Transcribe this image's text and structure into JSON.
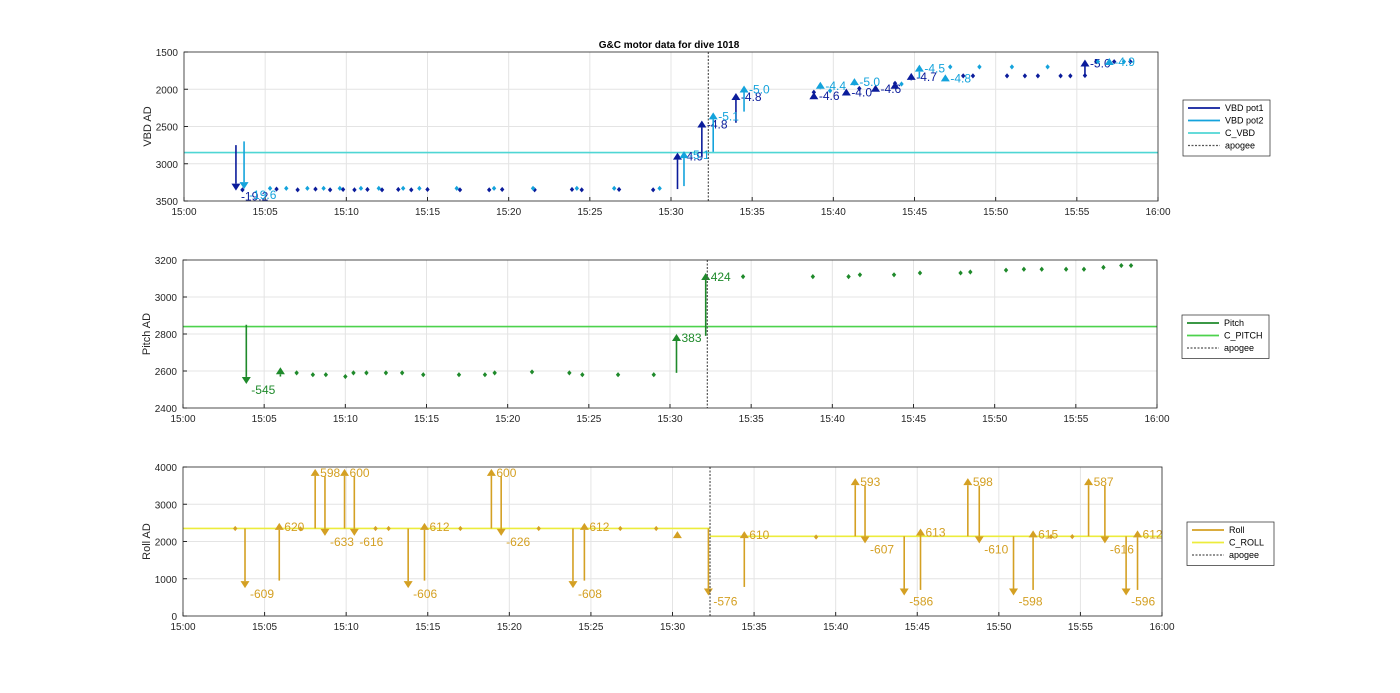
{
  "figure_title": "G&C motor data for dive 1018",
  "colors": {
    "pot1": "#0b1c9b",
    "pot2": "#14a3dc",
    "c_vbd": "#4fd6d4",
    "pitch": "#1f8a2b",
    "c_pitch": "#4cd24c",
    "roll": "#d4a023",
    "c_roll": "#ecec3c",
    "apogee": "#555555",
    "grid": "#e4e4e4"
  },
  "chart_data": [
    {
      "type": "scatter",
      "ylabel": "VBD AD",
      "xlim": [
        "15:00",
        "16:00"
      ],
      "x_ticks": [
        "15:00",
        "15:05",
        "15:10",
        "15:15",
        "15:20",
        "15:25",
        "15:30",
        "15:35",
        "15:40",
        "15:45",
        "15:50",
        "15:55",
        "16:00"
      ],
      "ylim": [
        1500,
        3500
      ],
      "y_reversed": true,
      "y_ticks": [
        1500,
        2000,
        2500,
        3000,
        3500
      ],
      "grid": true,
      "legend_position": "right",
      "legend": [
        "VBD pot1",
        "VBD pot2",
        "C_VBD",
        "apogee"
      ],
      "apogee_time": "15:32.3",
      "hlines": [
        {
          "series": "C_VBD",
          "value": 2850
        }
      ],
      "series": [
        {
          "name": "VBD pot1",
          "points": [
            [
              "15:03.6",
              3350
            ],
            [
              "15:05.7",
              3340
            ],
            [
              "15:07.0",
              3350
            ],
            [
              "15:08.1",
              3340
            ],
            [
              "15:09.0",
              3350
            ],
            [
              "15:09.8",
              3345
            ],
            [
              "15:10.5",
              3350
            ],
            [
              "15:11.3",
              3345
            ],
            [
              "15:12.2",
              3350
            ],
            [
              "15:13.2",
              3345
            ],
            [
              "15:14.0",
              3350
            ],
            [
              "15:15.0",
              3345
            ],
            [
              "15:17.0",
              3350
            ],
            [
              "15:18.8",
              3350
            ],
            [
              "15:19.6",
              3345
            ],
            [
              "15:21.6",
              3350
            ],
            [
              "15:23.9",
              3345
            ],
            [
              "15:24.5",
              3350
            ],
            [
              "15:26.8",
              3345
            ],
            [
              "15:28.9",
              3350
            ],
            [
              "15:38.8",
              2040
            ],
            [
              "15:41.6",
              1990
            ],
            [
              "15:43.8",
              1920
            ],
            [
              "15:48.0",
              1820
            ],
            [
              "15:48.6",
              1820
            ],
            [
              "15:50.7",
              1820
            ],
            [
              "15:51.8",
              1820
            ],
            [
              "15:52.6",
              1820
            ],
            [
              "15:54.0",
              1820
            ],
            [
              "15:54.6",
              1820
            ],
            [
              "15:55.5",
              1815
            ],
            [
              "15:56.2",
              1630
            ],
            [
              "15:57.3",
              1630
            ],
            [
              "15:58.3",
              1630
            ]
          ],
          "arrows": [
            {
              "t": "15:03.2",
              "from": 2750,
              "to": 3360,
              "label": "-19.2"
            },
            {
              "t": "15:30.4",
              "from": 3340,
              "to": 2850,
              "label": "-4.9"
            },
            {
              "t": "15:31.9",
              "from": 2900,
              "to": 2420,
              "label": "-4.8"
            },
            {
              "t": "15:34.0",
              "from": 2450,
              "to": 2050,
              "label": "-4.8"
            },
            {
              "t": "15:38.8",
              "from": 2080,
              "to": 2040,
              "label": "-4.6"
            },
            {
              "t": "15:40.8",
              "from": 2030,
              "to": 1990,
              "label": "-4.0"
            },
            {
              "t": "15:42.6",
              "from": 1990,
              "to": 1940,
              "label": "-4.6"
            },
            {
              "t": "15:43.8",
              "from": 1950,
              "to": 1900,
              "label": ""
            },
            {
              "t": "15:44.8",
              "from": 1880,
              "to": 1780,
              "label": "-4.7"
            },
            {
              "t": "15:55.5",
              "from": 1820,
              "to": 1600,
              "label": "-5.0"
            }
          ]
        },
        {
          "name": "VBD pot2",
          "points": [
            [
              "15:05.3",
              3330
            ],
            [
              "15:06.3",
              3330
            ],
            [
              "15:07.6",
              3330
            ],
            [
              "15:08.6",
              3330
            ],
            [
              "15:09.6",
              3330
            ],
            [
              "15:10.9",
              3330
            ],
            [
              "15:12.0",
              3330
            ],
            [
              "15:13.5",
              3330
            ],
            [
              "15:14.5",
              3330
            ],
            [
              "15:16.8",
              3330
            ],
            [
              "15:19.1",
              3330
            ],
            [
              "15:21.5",
              3330
            ],
            [
              "15:24.2",
              3330
            ],
            [
              "15:26.5",
              3330
            ],
            [
              "15:29.3",
              3330
            ],
            [
              "15:39.8",
              2020
            ],
            [
              "15:44.2",
              1930
            ],
            [
              "15:47.2",
              1700
            ],
            [
              "15:49.0",
              1700
            ],
            [
              "15:51.0",
              1700
            ],
            [
              "15:53.2",
              1700
            ],
            [
              "15:56.3",
              1630
            ],
            [
              "15:57.9",
              1630
            ]
          ],
          "arrows": [
            {
              "t": "15:03.7",
              "from": 2700,
              "to": 3340,
              "label": "-19.6"
            },
            {
              "t": "15:30.8",
              "from": 3300,
              "to": 2830,
              "label": "-5.1"
            },
            {
              "t": "15:32.6",
              "from": 2840,
              "to": 2310,
              "label": "-5.1"
            },
            {
              "t": "15:34.5",
              "from": 2300,
              "to": 1950,
              "label": "-5.0"
            },
            {
              "t": "15:39.2",
              "from": 2000,
              "to": 1900,
              "label": "-4.4"
            },
            {
              "t": "15:41.3",
              "from": 1950,
              "to": 1850,
              "label": "-5.0"
            },
            {
              "t": "15:45.3",
              "from": 1850,
              "to": 1670,
              "label": "-4.5"
            },
            {
              "t": "15:46.9",
              "from": 1800,
              "to": 1800,
              "label": "-4.8"
            },
            {
              "t": "15:57.0",
              "from": 1640,
              "to": 1580,
              "label": "-4.9"
            }
          ]
        }
      ]
    },
    {
      "type": "scatter",
      "ylabel": "Pitch AD",
      "xlim": [
        "15:00",
        "16:00"
      ],
      "x_ticks": [
        "15:00",
        "15:05",
        "15:10",
        "15:15",
        "15:20",
        "15:25",
        "15:30",
        "15:35",
        "15:40",
        "15:45",
        "15:50",
        "15:55",
        "16:00"
      ],
      "ylim": [
        2400,
        3200
      ],
      "y_ticks": [
        2400,
        2600,
        2800,
        3000,
        3200
      ],
      "grid": true,
      "legend_position": "right",
      "legend": [
        "Pitch",
        "C_PITCH",
        "apogee"
      ],
      "apogee_time": "15:32.3",
      "hlines": [
        {
          "series": "C_PITCH",
          "value": 2840
        }
      ],
      "series": [
        {
          "name": "Pitch",
          "points": [
            [
              "15:07.0",
              2590
            ],
            [
              "15:08.0",
              2580
            ],
            [
              "15:08.8",
              2580
            ],
            [
              "15:10.0",
              2570
            ],
            [
              "15:10.5",
              2590
            ],
            [
              "15:11.3",
              2590
            ],
            [
              "15:12.5",
              2590
            ],
            [
              "15:13.5",
              2590
            ],
            [
              "15:14.8",
              2580
            ],
            [
              "15:17.0",
              2580
            ],
            [
              "15:18.6",
              2580
            ],
            [
              "15:19.2",
              2590
            ],
            [
              "15:21.5",
              2595
            ],
            [
              "15:23.8",
              2590
            ],
            [
              "15:24.6",
              2580
            ],
            [
              "15:26.8",
              2580
            ],
            [
              "15:29.0",
              2580
            ],
            [
              "15:34.5",
              3110
            ],
            [
              "15:38.8",
              3110
            ],
            [
              "15:41.0",
              3110
            ],
            [
              "15:41.7",
              3120
            ],
            [
              "15:43.8",
              3120
            ],
            [
              "15:45.4",
              3130
            ],
            [
              "15:47.9",
              3130
            ],
            [
              "15:48.5",
              3135
            ],
            [
              "15:50.7",
              3145
            ],
            [
              "15:51.8",
              3150
            ],
            [
              "15:52.9",
              3150
            ],
            [
              "15:54.4",
              3150
            ],
            [
              "15:55.5",
              3150
            ],
            [
              "15:56.7",
              3160
            ],
            [
              "15:57.8",
              3170
            ],
            [
              "15:58.4",
              3170
            ]
          ],
          "arrows": [
            {
              "t": "15:03.9",
              "from": 2850,
              "to": 2530,
              "label": "-545"
            },
            {
              "t": "15:06.0",
              "from": 2570,
              "to": 2620,
              "label": ""
            },
            {
              "t": "15:30.4",
              "from": 2590,
              "to": 2800,
              "label": "383"
            },
            {
              "t": "15:32.2",
              "from": 2790,
              "to": 3130,
              "label": "424"
            }
          ]
        }
      ]
    },
    {
      "type": "scatter",
      "ylabel": "Roll AD",
      "xlim": [
        "15:00",
        "16:00"
      ],
      "x_ticks": [
        "15:00",
        "15:05",
        "15:10",
        "15:15",
        "15:20",
        "15:25",
        "15:30",
        "15:35",
        "15:40",
        "15:45",
        "15:50",
        "15:55",
        "16:00"
      ],
      "ylim": [
        0,
        4000
      ],
      "y_ticks": [
        0,
        1000,
        2000,
        3000,
        4000
      ],
      "grid": true,
      "legend_position": "right",
      "legend": [
        "Roll",
        "C_ROLL",
        "apogee"
      ],
      "apogee_time": "15:32.3",
      "hlines": [
        {
          "series": "C_ROLL",
          "value": 2350,
          "t_end": "15:32.3"
        },
        {
          "series": "C_ROLL",
          "value": 2140,
          "t_start": "15:32.3"
        }
      ],
      "series": [
        {
          "name": "Roll",
          "points": [
            [
              "15:03.2",
              2350
            ],
            [
              "15:07.2",
              2340
            ],
            [
              "15:11.8",
              2350
            ],
            [
              "15:12.6",
              2350
            ],
            [
              "15:17.0",
              2350
            ],
            [
              "15:21.8",
              2350
            ],
            [
              "15:26.8",
              2350
            ],
            [
              "15:29.0",
              2350
            ],
            [
              "15:38.8",
              2120
            ],
            [
              "15:53.2",
              2130
            ],
            [
              "15:54.5",
              2130
            ]
          ],
          "arrows": [
            {
              "t": "15:03.8",
              "from": 2350,
              "to": 750,
              "label": "-609"
            },
            {
              "t": "15:05.9",
              "from": 950,
              "to": 2500,
              "label": "620"
            },
            {
              "t": "15:08.1",
              "from": 2350,
              "to": 3950,
              "label": "598"
            },
            {
              "t": "15:08.7",
              "from": 3750,
              "to": 2150,
              "label": "-633"
            },
            {
              "t": "15:09.9",
              "from": 2350,
              "to": 3950,
              "label": "600"
            },
            {
              "t": "15:10.5",
              "from": 3750,
              "to": 2150,
              "label": "-616"
            },
            {
              "t": "15:13.8",
              "from": 2350,
              "to": 750,
              "label": "-606"
            },
            {
              "t": "15:14.8",
              "from": 950,
              "to": 2500,
              "label": "612"
            },
            {
              "t": "15:18.9",
              "from": 2350,
              "to": 3950,
              "label": "600"
            },
            {
              "t": "15:19.5",
              "from": 3750,
              "to": 2150,
              "label": "-626"
            },
            {
              "t": "15:23.9",
              "from": 2350,
              "to": 750,
              "label": "-608"
            },
            {
              "t": "15:24.6",
              "from": 950,
              "to": 2500,
              "label": "612"
            },
            {
              "t": "15:30.3",
              "from": 2180,
              "to": 2280,
              "label": ""
            },
            {
              "t": "15:32.2",
              "from": 2350,
              "to": 550,
              "label": "-576"
            },
            {
              "t": "15:34.4",
              "from": 780,
              "to": 2280,
              "label": "610"
            },
            {
              "t": "15:41.2",
              "from": 2140,
              "to": 3700,
              "label": "593"
            },
            {
              "t": "15:41.8",
              "from": 3500,
              "to": 1950,
              "label": "-607"
            },
            {
              "t": "15:44.2",
              "from": 2140,
              "to": 550,
              "label": "-586"
            },
            {
              "t": "15:45.2",
              "from": 700,
              "to": 2350,
              "label": "613"
            },
            {
              "t": "15:48.1",
              "from": 2140,
              "to": 3700,
              "label": "598"
            },
            {
              "t": "15:48.8",
              "from": 3500,
              "to": 1950,
              "label": "-610"
            },
            {
              "t": "15:50.9",
              "from": 2140,
              "to": 550,
              "label": "-598"
            },
            {
              "t": "15:52.1",
              "from": 700,
              "to": 2300,
              "label": "615"
            },
            {
              "t": "15:55.5",
              "from": 2140,
              "to": 3700,
              "label": "587"
            },
            {
              "t": "15:56.5",
              "from": 3500,
              "to": 1950,
              "label": "-616"
            },
            {
              "t": "15:57.8",
              "from": 2140,
              "to": 550,
              "label": "-596"
            },
            {
              "t": "15:58.5",
              "from": 700,
              "to": 2300,
              "label": "612"
            }
          ]
        }
      ]
    }
  ]
}
